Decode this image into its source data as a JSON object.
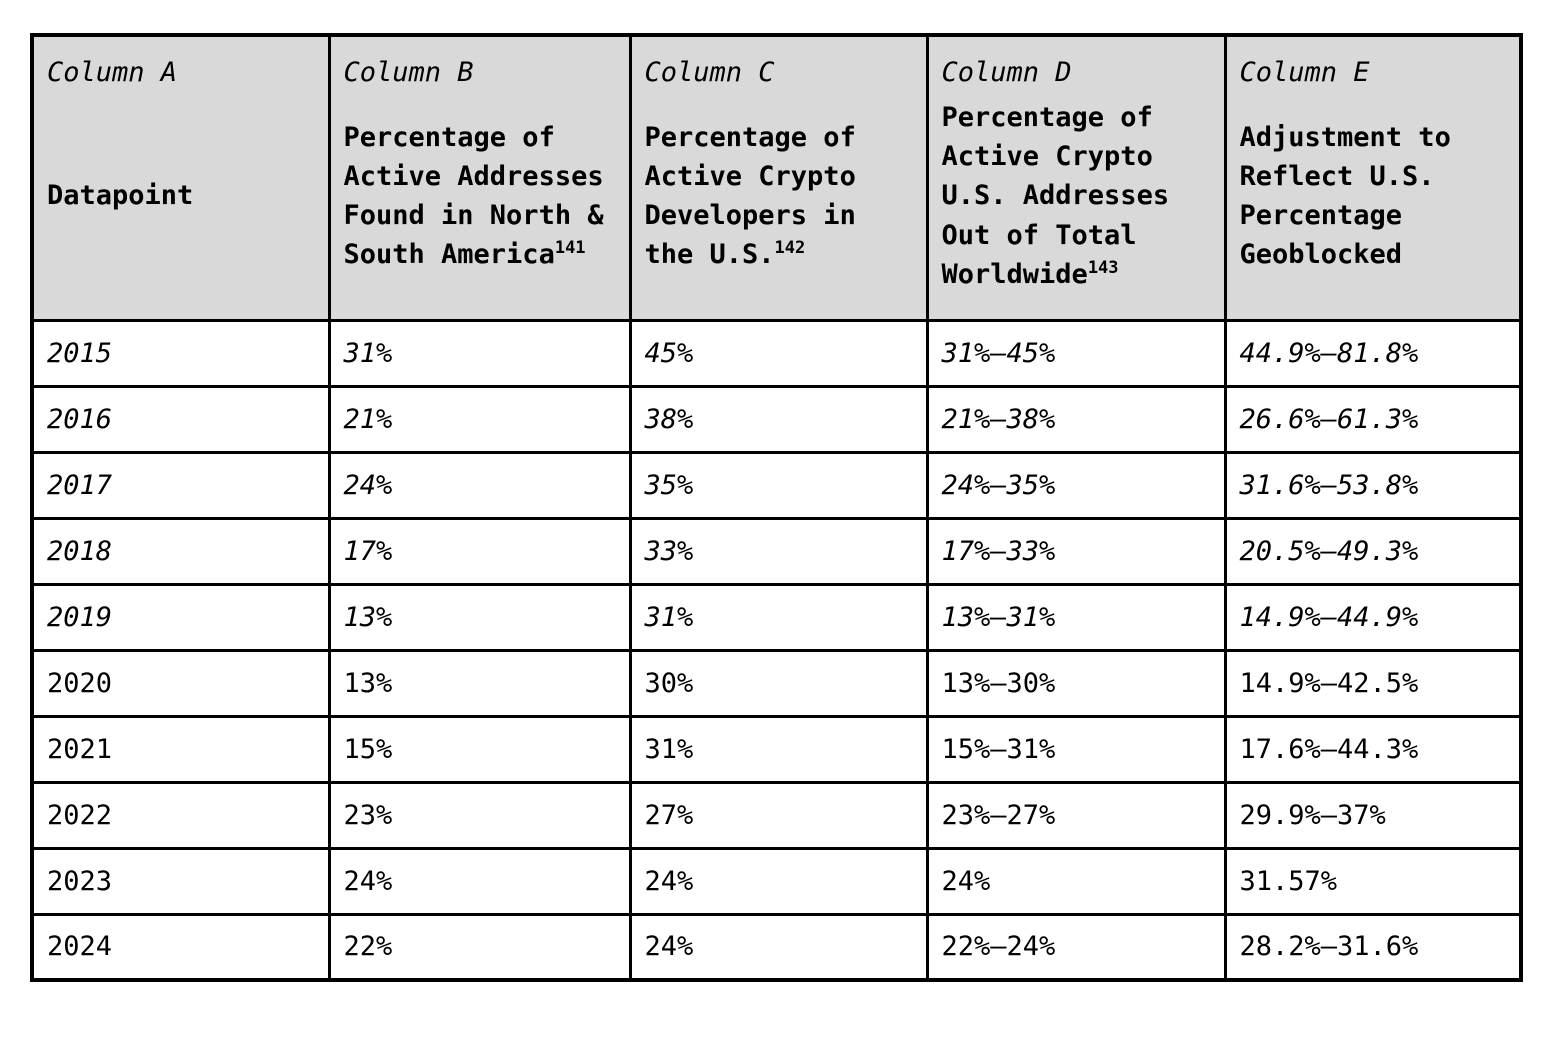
{
  "table": {
    "style": {
      "header_bg": "#d9d9d9",
      "border_color": "#000000",
      "text_color": "#000000"
    },
    "columns": [
      {
        "label": "Column A",
        "title": "Datapoint",
        "footnote": ""
      },
      {
        "label": "Column B",
        "title": "Percentage of\nActive Addresses\nFound in North &\nSouth America",
        "footnote": "141"
      },
      {
        "label": "Column C",
        "title": "Percentage of\nActive Crypto\nDevelopers in\nthe U.S.",
        "footnote": "142"
      },
      {
        "label": "Column D",
        "title": "Percentage of\nActive Crypto\nU.S. Addresses\nOut of Total\nWorldwide",
        "footnote": "143"
      },
      {
        "label": "Column E",
        "title": "Adjustment to\nReflect U.S.\nPercentage\nGeoblocked",
        "footnote": ""
      }
    ],
    "rows": [
      {
        "year": "2015",
        "b": "31%",
        "c": "45%",
        "d": "31%–45%",
        "e": "44.9%–81.8%",
        "italic": true
      },
      {
        "year": "2016",
        "b": "21%",
        "c": "38%",
        "d": "21%–38%",
        "e": "26.6%–61.3%",
        "italic": true
      },
      {
        "year": "2017",
        "b": "24%",
        "c": "35%",
        "d": "24%–35%",
        "e": "31.6%–53.8%",
        "italic": true
      },
      {
        "year": "2018",
        "b": "17%",
        "c": "33%",
        "d": "17%–33%",
        "e": "20.5%–49.3%",
        "italic": true
      },
      {
        "year": "2019",
        "b": "13%",
        "c": "31%",
        "d": "13%–31%",
        "e": "14.9%–44.9%",
        "italic": true
      },
      {
        "year": "2020",
        "b": "13%",
        "c": "30%",
        "d": "13%–30%",
        "e": "14.9%–42.5%",
        "italic": false
      },
      {
        "year": "2021",
        "b": "15%",
        "c": "31%",
        "d": "15%–31%",
        "e": "17.6%–44.3%",
        "italic": false
      },
      {
        "year": "2022",
        "b": "23%",
        "c": "27%",
        "d": "23%–27%",
        "e": "29.9%–37%",
        "italic": false
      },
      {
        "year": "2023",
        "b": "24%",
        "c": "24%",
        "d": "24%",
        "e": "31.57%",
        "italic": false
      },
      {
        "year": "2024",
        "b": "22%",
        "c": "24%",
        "d": "22%–24%",
        "e": "28.2%–31.6%",
        "italic": false
      }
    ]
  }
}
